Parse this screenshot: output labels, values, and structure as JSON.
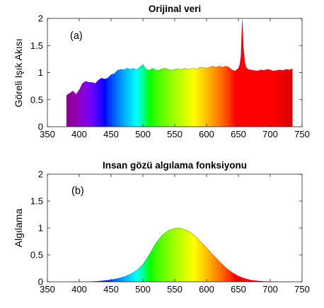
{
  "chart_data": [
    {
      "type": "area",
      "panel": "a",
      "title": "Orijinal veri",
      "panel_label": "(a)",
      "xlabel": "",
      "ylabel": "Göreli Işık Akısı",
      "xlim": [
        350,
        750
      ],
      "ylim": [
        0,
        2
      ],
      "xticks": [
        "350",
        "400",
        "450",
        "500",
        "550",
        "600",
        "650",
        "700",
        "750"
      ],
      "yticks": [
        "0",
        "0.5",
        "1",
        "1.5",
        "2"
      ],
      "fill": "spectral rainbow (violet at 380 nm to red at 735 nm)",
      "x": [
        380,
        385,
        390,
        395,
        400,
        405,
        410,
        415,
        420,
        425,
        430,
        435,
        440,
        445,
        450,
        455,
        460,
        465,
        470,
        475,
        480,
        485,
        490,
        495,
        500,
        505,
        510,
        515,
        520,
        525,
        530,
        535,
        540,
        545,
        550,
        555,
        560,
        565,
        570,
        575,
        580,
        585,
        590,
        595,
        600,
        605,
        610,
        615,
        620,
        625,
        630,
        635,
        640,
        645,
        650,
        652,
        654,
        656,
        658,
        660,
        662,
        665,
        670,
        675,
        680,
        685,
        690,
        695,
        700,
        705,
        710,
        715,
        720,
        725,
        730,
        735
      ],
      "values": [
        0.58,
        0.62,
        0.66,
        0.6,
        0.68,
        0.8,
        0.84,
        0.82,
        0.82,
        0.8,
        0.86,
        0.9,
        0.88,
        0.9,
        0.96,
        0.98,
        1.04,
        1.06,
        1.05,
        1.08,
        1.06,
        1.08,
        1.05,
        1.1,
        1.15,
        1.06,
        1.04,
        1.08,
        1.05,
        1.04,
        1.07,
        1.08,
        1.06,
        1.04,
        1.06,
        1.07,
        1.05,
        1.08,
        1.06,
        1.07,
        1.08,
        1.06,
        1.1,
        1.09,
        1.08,
        1.1,
        1.12,
        1.1,
        1.12,
        1.1,
        1.12,
        1.1,
        1.05,
        1.03,
        1.08,
        1.14,
        1.3,
        1.98,
        1.45,
        1.2,
        1.1,
        1.06,
        1.05,
        1.04,
        1.03,
        1.05,
        1.04,
        1.06,
        1.05,
        1.03,
        1.04,
        1.05,
        1.04,
        1.06,
        1.05,
        1.07
      ]
    },
    {
      "type": "area",
      "panel": "b",
      "title": "Insan gözü algılama fonksiyonu",
      "panel_label": "(b)",
      "xlabel": "",
      "ylabel": "Algılama",
      "xlim": [
        350,
        750
      ],
      "ylim": [
        0,
        2
      ],
      "xticks": [
        "350",
        "400",
        "450",
        "500",
        "550",
        "600",
        "650",
        "700",
        "750"
      ],
      "yticks": [
        "0",
        "0.5",
        "1",
        "1.5",
        "2"
      ],
      "fill": "spectral rainbow under curve",
      "x": [
        380,
        390,
        400,
        410,
        420,
        430,
        440,
        450,
        460,
        470,
        480,
        490,
        500,
        510,
        520,
        530,
        540,
        550,
        555,
        560,
        570,
        580,
        590,
        600,
        610,
        620,
        630,
        640,
        650,
        660,
        670,
        680,
        690,
        700,
        710,
        720,
        730,
        735
      ],
      "values": [
        0.0,
        0.0,
        0.0,
        0.001,
        0.004,
        0.012,
        0.023,
        0.038,
        0.06,
        0.091,
        0.139,
        0.208,
        0.323,
        0.503,
        0.71,
        0.862,
        0.954,
        0.995,
        1.0,
        0.995,
        0.952,
        0.87,
        0.757,
        0.631,
        0.503,
        0.381,
        0.265,
        0.175,
        0.107,
        0.061,
        0.032,
        0.017,
        0.008,
        0.004,
        0.002,
        0.001,
        0.0,
        0.0
      ]
    }
  ]
}
